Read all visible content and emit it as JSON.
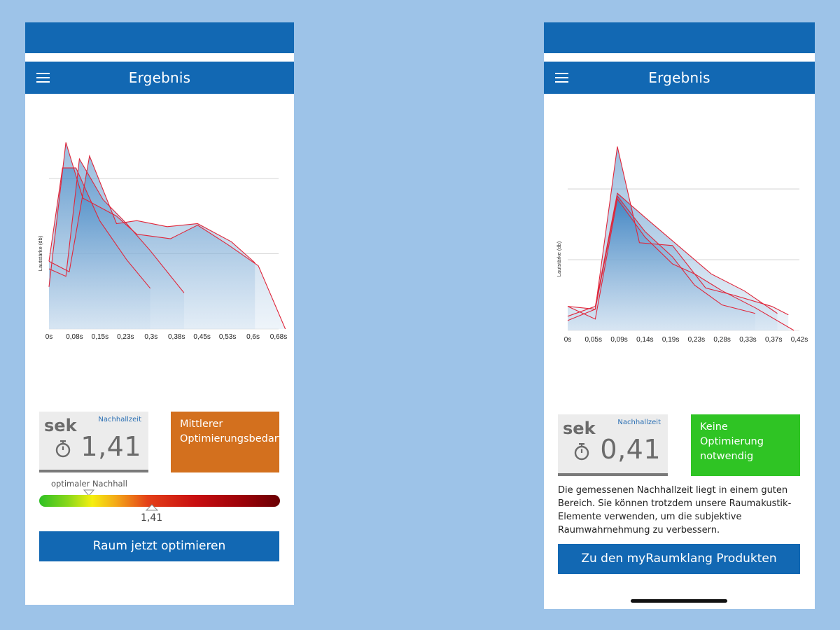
{
  "screens": [
    {
      "title": "Ergebnis",
      "chart": {
        "ylabel": "Lautstärke (db)",
        "x_ticks": [
          "0s",
          "0,08s",
          "0,15s",
          "0,23s",
          "0,3s",
          "0,38s",
          "0,45s",
          "0,53s",
          "0,6s",
          "0,68s"
        ]
      },
      "card": {
        "unit": "sek",
        "label": "Nachhallzeit",
        "value": "1,41"
      },
      "status": {
        "text": "Mittlerer Optimierungsbedarf",
        "color": "#d3701e"
      },
      "scale": {
        "label": "optimaler Nachhall",
        "value_label": "1,41",
        "value": 1.41,
        "optimal": 0.5
      },
      "button": {
        "label": "Raum jetzt optimieren"
      }
    },
    {
      "title": "Ergebnis",
      "chart": {
        "ylabel": "Lautstärke (db)",
        "x_ticks": [
          "0s",
          "0,05s",
          "0,09s",
          "0,14s",
          "0,19s",
          "0,23s",
          "0,28s",
          "0,33s",
          "0,37s",
          "0,42s"
        ]
      },
      "card": {
        "unit": "sek",
        "label": "Nachhallzeit",
        "value": "0,41"
      },
      "status": {
        "text": "Keine Optimierung notwendig",
        "color": "#2fc424"
      },
      "description": "Die gemessenen Nachhallzeit liegt in einem guten Bereich. Sie können trotzdem unsere Raumakustik-Elemente verwenden, um die subjektive Raumwahrnehmung zu verbessern.",
      "button": {
        "label": "Zu den myRaumklang Produkten"
      }
    }
  ],
  "chart_data": [
    {
      "type": "area",
      "title": "",
      "xlabel": "",
      "ylabel": "Lautstärke (db)",
      "x_ticks": [
        "0s",
        "0,08s",
        "0,15s",
        "0,23s",
        "0,3s",
        "0,38s",
        "0,45s",
        "0,53s",
        "0,6s",
        "0,68s"
      ],
      "xlim": [
        0,
        0.68
      ],
      "ylim": [
        0,
        100
      ],
      "grid_lines_y": [
        50,
        100
      ],
      "series": [
        {
          "x": [
            0,
            0.04,
            0.08,
            0.15,
            0.23,
            0.3
          ],
          "y": [
            45,
            107,
            107,
            72,
            46,
            27
          ]
        },
        {
          "x": [
            0,
            0.05,
            0.09,
            0.16,
            0.23,
            0.3,
            0.4
          ],
          "y": [
            40,
            35,
            113,
            86,
            70,
            52,
            24
          ]
        },
        {
          "x": [
            0,
            0.05,
            0.1,
            0.2,
            0.26,
            0.36,
            0.44,
            0.53,
            0.62,
            0.7
          ],
          "y": [
            28,
            124,
            87,
            75,
            63,
            60,
            69,
            56,
            42,
            0
          ]
        },
        {
          "x": [
            0,
            0.06,
            0.12,
            0.2,
            0.26,
            0.35,
            0.44,
            0.54,
            0.61
          ],
          "y": [
            45,
            38,
            115,
            70,
            72,
            68,
            70,
            58,
            44
          ]
        }
      ]
    },
    {
      "type": "area",
      "title": "",
      "xlabel": "",
      "ylabel": "Lautstärke (db)",
      "x_ticks": [
        "0s",
        "0,05s",
        "0,09s",
        "0,14s",
        "0,19s",
        "0,23s",
        "0,28s",
        "0,33s",
        "0,37s",
        "0,42s"
      ],
      "xlim": [
        0,
        0.42
      ],
      "ylim": [
        0,
        100
      ],
      "grid_lines_y": [
        50,
        100
      ],
      "series": [
        {
          "x": [
            0,
            0.05,
            0.09,
            0.14,
            0.19,
            0.23,
            0.28,
            0.34
          ],
          "y": [
            7,
            15,
            95,
            70,
            52,
            32,
            18,
            12
          ]
        },
        {
          "x": [
            0,
            0.05,
            0.09,
            0.14,
            0.19,
            0.23,
            0.28,
            0.34,
            0.41
          ],
          "y": [
            17,
            8,
            93,
            66,
            47,
            40,
            28,
            16,
            0
          ]
        },
        {
          "x": [
            0,
            0.05,
            0.09,
            0.13,
            0.19,
            0.25,
            0.3,
            0.37,
            0.4
          ],
          "y": [
            17,
            15,
            130,
            62,
            60,
            30,
            25,
            17,
            11
          ]
        },
        {
          "x": [
            0,
            0.05,
            0.09,
            0.14,
            0.2,
            0.26,
            0.32,
            0.38
          ],
          "y": [
            10,
            17,
            97,
            80,
            60,
            40,
            28,
            12
          ]
        }
      ]
    }
  ]
}
